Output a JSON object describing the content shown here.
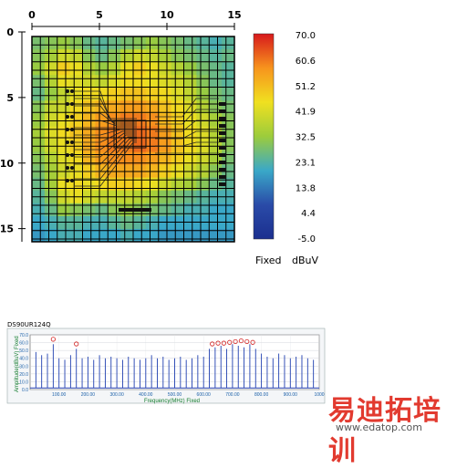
{
  "chart_data": [
    {
      "type": "heatmap",
      "x_ticks": [
        "0",
        "5",
        "10",
        "15"
      ],
      "y_ticks": [
        "0",
        "5",
        "10",
        "15"
      ],
      "xlim": [
        0,
        15
      ],
      "ylim": [
        0,
        16
      ],
      "grid": true,
      "colorbar": {
        "labels": [
          "70.0",
          "60.6",
          "51.2",
          "41.9",
          "32.5",
          "23.1",
          "13.8",
          "4.4",
          "-5.0"
        ],
        "min": -5.0,
        "max": 70.0,
        "detector_label": "Fixed",
        "unit_label": "dBuV",
        "colors": [
          "#d7191c",
          "#f7941d",
          "#f0e020",
          "#9ccc3c",
          "#3aa8c8",
          "#2a4ba8",
          "#1b2f8f"
        ]
      },
      "values": [
        [
          28,
          30,
          32,
          30,
          26,
          24,
          26,
          28,
          30,
          32,
          30,
          28,
          26,
          24,
          22,
          24
        ],
        [
          30,
          34,
          40,
          38,
          30,
          26,
          30,
          36,
          40,
          38,
          34,
          30,
          28,
          26,
          24,
          26
        ],
        [
          32,
          40,
          48,
          44,
          36,
          32,
          36,
          44,
          48,
          44,
          40,
          36,
          32,
          28,
          26,
          24
        ],
        [
          28,
          36,
          44,
          42,
          40,
          38,
          42,
          46,
          46,
          44,
          42,
          40,
          36,
          30,
          26,
          24
        ],
        [
          26,
          32,
          38,
          44,
          46,
          46,
          48,
          50,
          50,
          48,
          46,
          42,
          38,
          32,
          28,
          26
        ],
        [
          30,
          38,
          40,
          46,
          50,
          52,
          54,
          56,
          56,
          54,
          50,
          46,
          42,
          36,
          30,
          28
        ],
        [
          32,
          40,
          44,
          48,
          52,
          56,
          58,
          60,
          60,
          58,
          52,
          48,
          44,
          40,
          34,
          30
        ],
        [
          34,
          42,
          46,
          50,
          54,
          58,
          60,
          60,
          62,
          60,
          56,
          50,
          46,
          42,
          36,
          30
        ],
        [
          32,
          40,
          44,
          48,
          54,
          58,
          60,
          60,
          62,
          60,
          56,
          50,
          46,
          42,
          36,
          30
        ],
        [
          30,
          36,
          42,
          46,
          52,
          56,
          58,
          58,
          58,
          56,
          52,
          48,
          44,
          40,
          34,
          28
        ],
        [
          28,
          34,
          40,
          44,
          48,
          52,
          54,
          54,
          54,
          52,
          48,
          44,
          40,
          36,
          30,
          26
        ],
        [
          26,
          34,
          44,
          46,
          44,
          46,
          48,
          48,
          46,
          44,
          40,
          36,
          34,
          30,
          26,
          24
        ],
        [
          24,
          30,
          40,
          44,
          40,
          38,
          38,
          38,
          36,
          34,
          30,
          28,
          26,
          24,
          22,
          22
        ],
        [
          22,
          26,
          32,
          30,
          28,
          26,
          30,
          32,
          30,
          28,
          26,
          24,
          22,
          22,
          20,
          20
        ],
        [
          20,
          22,
          24,
          24,
          22,
          22,
          24,
          26,
          24,
          22,
          20,
          20,
          20,
          20,
          20,
          20
        ],
        [
          18,
          20,
          22,
          22,
          20,
          20,
          20,
          22,
          20,
          20,
          18,
          18,
          18,
          18,
          18,
          18
        ]
      ]
    },
    {
      "type": "line",
      "title": "DS90UR124Q",
      "xlabel": "Frequency(MHz) Fixed",
      "ylabel": "Amplitude(dBuV) Fixed",
      "xlim": [
        0,
        1000
      ],
      "ylim": [
        0,
        70
      ],
      "x_ticks": [
        "100.00",
        "200.00",
        "300.00",
        "400.00",
        "500.00",
        "600.00",
        "700.00",
        "800.00",
        "900.00",
        "1000"
      ],
      "y_ticks": [
        "70.0",
        "60.0",
        "50.0",
        "40.0",
        "30.0",
        "20.0",
        "10.0",
        "0.0"
      ],
      "series": [
        {
          "color": "#1f3fb0",
          "x": [
            20,
            40,
            60,
            80,
            100,
            120,
            140,
            160,
            180,
            200,
            220,
            240,
            260,
            280,
            300,
            320,
            340,
            360,
            380,
            400,
            420,
            440,
            460,
            480,
            500,
            520,
            540,
            560,
            580,
            600,
            620,
            640,
            660,
            680,
            700,
            720,
            740,
            760,
            780,
            800,
            820,
            840,
            860,
            880,
            900,
            920,
            940,
            960,
            980
          ],
          "y": [
            48,
            44,
            46,
            58,
            40,
            38,
            44,
            52,
            40,
            42,
            38,
            44,
            40,
            42,
            40,
            38,
            42,
            40,
            38,
            40,
            44,
            40,
            42,
            38,
            40,
            42,
            38,
            40,
            44,
            42,
            52,
            54,
            56,
            52,
            58,
            56,
            54,
            58,
            52,
            46,
            42,
            40,
            46,
            44,
            40,
            42,
            44,
            40,
            38
          ]
        }
      ],
      "peak_markers": {
        "x": [
          80,
          160,
          630,
          650,
          670,
          690,
          710,
          730,
          750,
          770
        ],
        "y": [
          62,
          56,
          56,
          57,
          57,
          58,
          59,
          60,
          59,
          58
        ]
      }
    }
  ],
  "watermark": {
    "cn_text": "易迪拓培训",
    "url": "www.edatop.com"
  }
}
